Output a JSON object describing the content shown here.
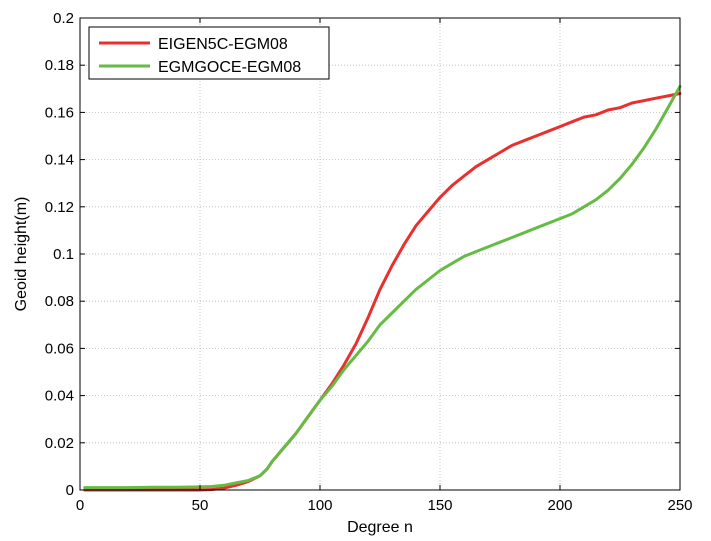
{
  "chart_data": {
    "type": "line",
    "title": "",
    "xlabel": "Degree n",
    "ylabel": "Geoid height(m)",
    "xlim": [
      0,
      250
    ],
    "ylim": [
      0,
      0.2
    ],
    "xticks": [
      "0",
      "50",
      "100",
      "150",
      "200",
      "250"
    ],
    "yticks": [
      "0",
      "0.02",
      "0.04",
      "0.06",
      "0.08",
      "0.1",
      "0.12",
      "0.14",
      "0.16",
      "0.18",
      "0.2"
    ],
    "grid": true,
    "legend_position": "top-left",
    "series": [
      {
        "name": "EIGEN5C-EGM08",
        "color": "#e8302e",
        "x": [
          2,
          10,
          20,
          30,
          40,
          50,
          55,
          60,
          65,
          70,
          75,
          78,
          80,
          85,
          90,
          95,
          100,
          105,
          110,
          115,
          120,
          125,
          130,
          135,
          140,
          145,
          150,
          155,
          160,
          165,
          170,
          175,
          180,
          185,
          190,
          195,
          200,
          205,
          210,
          215,
          220,
          225,
          230,
          235,
          240,
          245,
          250
        ],
        "y": [
          0.0,
          0.0,
          0.0,
          0.0,
          0.0,
          0.0,
          0.0002,
          0.0008,
          0.002,
          0.0035,
          0.006,
          0.009,
          0.012,
          0.018,
          0.024,
          0.031,
          0.038,
          0.045,
          0.053,
          0.062,
          0.073,
          0.085,
          0.095,
          0.104,
          0.112,
          0.118,
          0.124,
          0.129,
          0.133,
          0.137,
          0.14,
          0.143,
          0.146,
          0.148,
          0.15,
          0.152,
          0.154,
          0.156,
          0.158,
          0.159,
          0.161,
          0.162,
          0.164,
          0.165,
          0.166,
          0.167,
          0.168
        ]
      },
      {
        "name": "EGMGOCE-EGM08",
        "color": "#66bb44",
        "x": [
          2,
          10,
          20,
          30,
          40,
          50,
          55,
          60,
          65,
          70,
          75,
          78,
          80,
          85,
          90,
          95,
          100,
          105,
          110,
          115,
          120,
          125,
          130,
          135,
          140,
          145,
          150,
          155,
          160,
          165,
          170,
          175,
          180,
          185,
          190,
          195,
          200,
          205,
          210,
          215,
          220,
          225,
          230,
          235,
          240,
          245,
          250
        ],
        "y": [
          0.001,
          0.001,
          0.001,
          0.0012,
          0.0012,
          0.0013,
          0.0015,
          0.002,
          0.003,
          0.004,
          0.006,
          0.009,
          0.012,
          0.018,
          0.024,
          0.031,
          0.038,
          0.044,
          0.051,
          0.057,
          0.063,
          0.07,
          0.075,
          0.08,
          0.085,
          0.089,
          0.093,
          0.096,
          0.099,
          0.101,
          0.103,
          0.105,
          0.107,
          0.109,
          0.111,
          0.113,
          0.115,
          0.117,
          0.12,
          0.123,
          0.127,
          0.132,
          0.138,
          0.145,
          0.153,
          0.162,
          0.171
        ]
      }
    ]
  }
}
